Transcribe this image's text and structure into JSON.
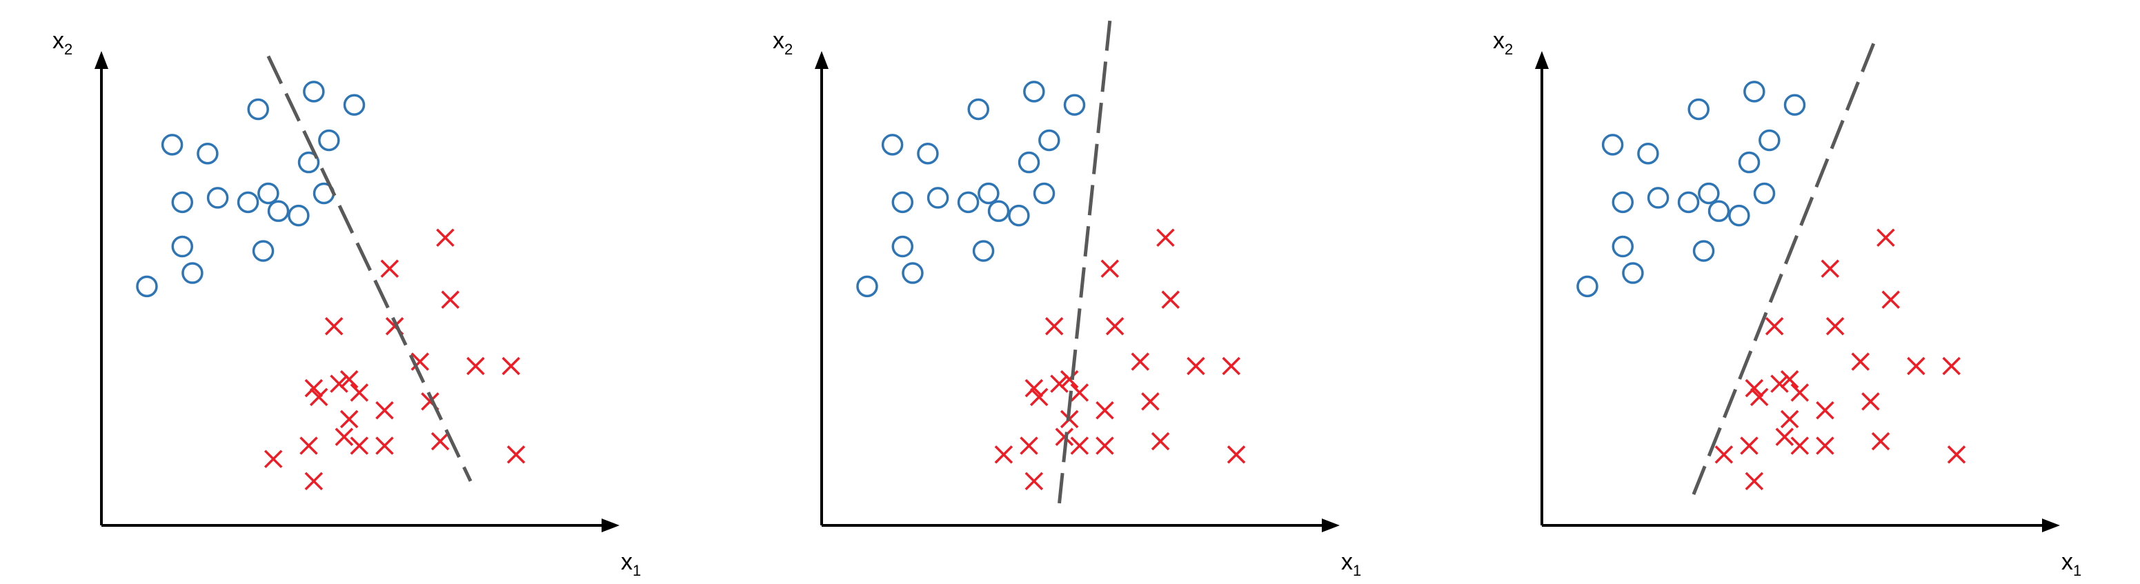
{
  "colors": {
    "circle": "#2e75b6",
    "cross": "#ee1c25",
    "boundary": "#595959",
    "axis": "#000000"
  },
  "chart_data": [
    {
      "type": "scatter",
      "xlabel": "x",
      "xlabel_sub": "1",
      "ylabel": "x",
      "ylabel_sub": "2",
      "xlim": [
        0,
        100
      ],
      "ylim": [
        0,
        100
      ],
      "grid": false,
      "series": [
        {
          "marker": "circle",
          "color": "#2e75b6",
          "points": [
            [
              9,
              54
            ],
            [
              14,
              86
            ],
            [
              16,
              73
            ],
            [
              16,
              63
            ],
            [
              18,
              57
            ],
            [
              21,
              84
            ],
            [
              23,
              74
            ],
            [
              29,
              73
            ],
            [
              31,
              94
            ],
            [
              32,
              62
            ],
            [
              33,
              75
            ],
            [
              35,
              71
            ],
            [
              39,
              70
            ],
            [
              41,
              82
            ],
            [
              42,
              98
            ],
            [
              44,
              75
            ],
            [
              45,
              87
            ],
            [
              50,
              95
            ]
          ]
        },
        {
          "marker": "cross",
          "color": "#ee1c25",
          "points": [
            [
              34,
              15
            ],
            [
              41,
              18
            ],
            [
              42,
              10
            ],
            [
              42,
              31
            ],
            [
              43,
              29
            ],
            [
              46,
              45
            ],
            [
              47,
              32
            ],
            [
              48,
              20
            ],
            [
              49,
              33
            ],
            [
              49,
              24
            ],
            [
              51,
              18
            ],
            [
              51,
              30
            ],
            [
              56,
              26
            ],
            [
              56,
              18
            ],
            [
              57,
              58
            ],
            [
              58,
              45
            ],
            [
              63,
              37
            ],
            [
              65,
              28
            ],
            [
              67,
              19
            ],
            [
              68,
              65
            ],
            [
              69,
              51
            ],
            [
              74,
              36
            ],
            [
              81,
              36
            ],
            [
              82,
              16
            ]
          ]
        }
      ],
      "boundary": [
        [
          33,
          106
        ],
        [
          73,
          10
        ]
      ]
    },
    {
      "type": "scatter",
      "xlabel": "x",
      "xlabel_sub": "1",
      "ylabel": "x",
      "ylabel_sub": "2",
      "xlim": [
        0,
        100
      ],
      "ylim": [
        0,
        100
      ],
      "grid": false,
      "series": [
        {
          "marker": "circle",
          "color": "#2e75b6",
          "points": [
            [
              9,
              54
            ],
            [
              14,
              86
            ],
            [
              16,
              73
            ],
            [
              16,
              63
            ],
            [
              18,
              57
            ],
            [
              21,
              84
            ],
            [
              23,
              74
            ],
            [
              29,
              73
            ],
            [
              31,
              94
            ],
            [
              32,
              62
            ],
            [
              33,
              75
            ],
            [
              35,
              71
            ],
            [
              39,
              70
            ],
            [
              41,
              82
            ],
            [
              42,
              98
            ],
            [
              44,
              75
            ],
            [
              45,
              87
            ],
            [
              50,
              95
            ]
          ]
        },
        {
          "marker": "cross",
          "color": "#ee1c25",
          "points": [
            [
              36,
              16
            ],
            [
              41,
              18
            ],
            [
              42,
              10
            ],
            [
              42,
              31
            ],
            [
              43,
              29
            ],
            [
              46,
              45
            ],
            [
              47,
              32
            ],
            [
              48,
              20
            ],
            [
              49,
              33
            ],
            [
              49,
              24
            ],
            [
              51,
              18
            ],
            [
              51,
              30
            ],
            [
              56,
              26
            ],
            [
              56,
              18
            ],
            [
              57,
              58
            ],
            [
              58,
              45
            ],
            [
              63,
              37
            ],
            [
              65,
              28
            ],
            [
              67,
              19
            ],
            [
              68,
              65
            ],
            [
              69,
              51
            ],
            [
              74,
              36
            ],
            [
              81,
              36
            ],
            [
              82,
              16
            ]
          ]
        }
      ],
      "boundary": [
        [
          47,
          5
        ],
        [
          57,
          114
        ]
      ]
    },
    {
      "type": "scatter",
      "xlabel": "x",
      "xlabel_sub": "1",
      "ylabel": "x",
      "ylabel_sub": "2",
      "xlim": [
        0,
        100
      ],
      "ylim": [
        0,
        100
      ],
      "grid": false,
      "series": [
        {
          "marker": "circle",
          "color": "#2e75b6",
          "points": [
            [
              9,
              54
            ],
            [
              14,
              86
            ],
            [
              16,
              73
            ],
            [
              16,
              63
            ],
            [
              18,
              57
            ],
            [
              21,
              84
            ],
            [
              23,
              74
            ],
            [
              29,
              73
            ],
            [
              31,
              94
            ],
            [
              32,
              62
            ],
            [
              33,
              75
            ],
            [
              35,
              71
            ],
            [
              39,
              70
            ],
            [
              41,
              82
            ],
            [
              42,
              98
            ],
            [
              44,
              75
            ],
            [
              45,
              87
            ],
            [
              50,
              95
            ]
          ]
        },
        {
          "marker": "cross",
          "color": "#ee1c25",
          "points": [
            [
              36,
              16
            ],
            [
              41,
              18
            ],
            [
              42,
              10
            ],
            [
              42,
              31
            ],
            [
              43,
              29
            ],
            [
              46,
              45
            ],
            [
              47,
              32
            ],
            [
              48,
              20
            ],
            [
              49,
              33
            ],
            [
              49,
              24
            ],
            [
              51,
              18
            ],
            [
              51,
              30
            ],
            [
              56,
              26
            ],
            [
              56,
              18
            ],
            [
              57,
              58
            ],
            [
              58,
              45
            ],
            [
              63,
              37
            ],
            [
              65,
              28
            ],
            [
              67,
              19
            ],
            [
              68,
              65
            ],
            [
              69,
              51
            ],
            [
              74,
              36
            ],
            [
              81,
              36
            ],
            [
              82,
              16
            ]
          ]
        }
      ],
      "boundary": [
        [
          30,
          7
        ],
        [
          66,
          110
        ]
      ]
    }
  ]
}
